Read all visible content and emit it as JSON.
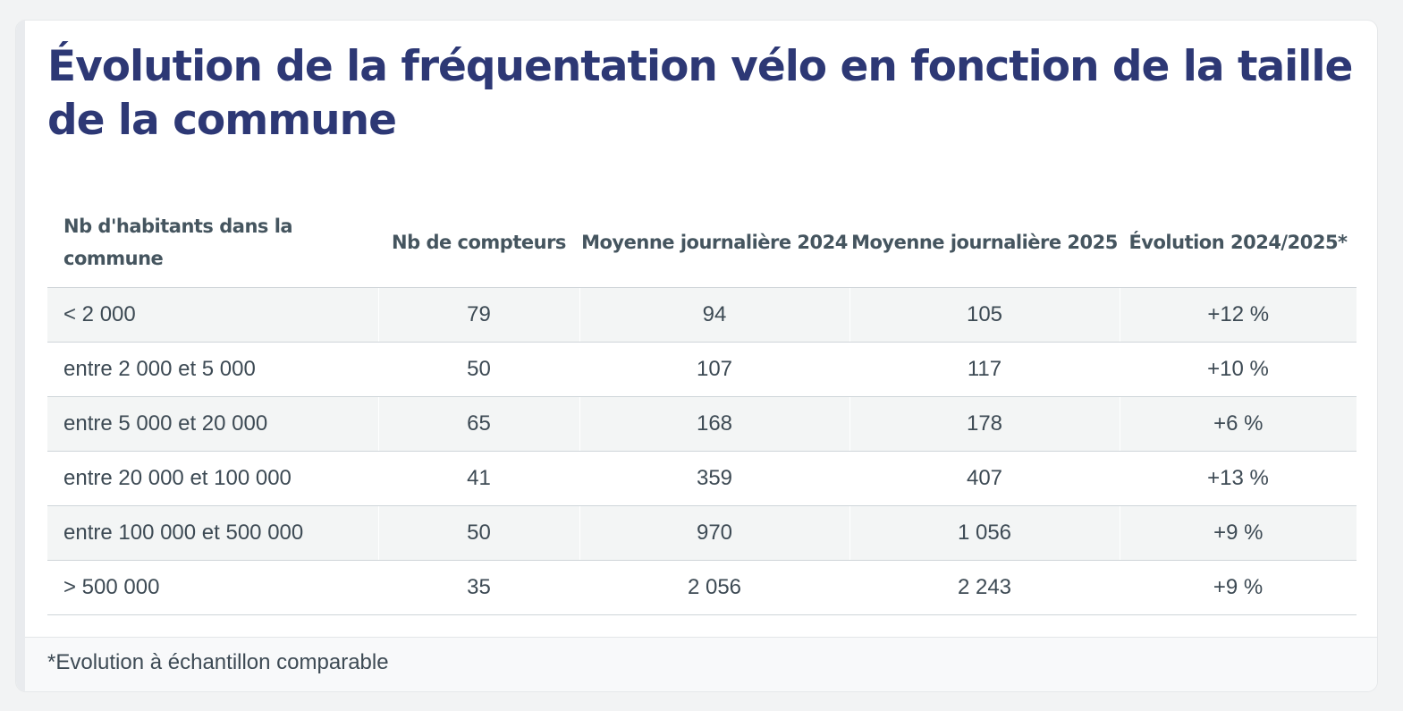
{
  "title": "Évolution de la fréquentation vélo en fonction de la taille de la commune",
  "table": {
    "headers": [
      "Nb d'habitants dans la commune",
      "Nb de compteurs",
      "Moyenne journalière 2024",
      "Moyenne journalière 2025",
      "Évolution 2024/2025*"
    ],
    "rows": [
      [
        "< 2 000",
        "79",
        "94",
        "105",
        "+12 %"
      ],
      [
        "entre 2 000 et 5 000",
        "50",
        "107",
        "117",
        "+10 %"
      ],
      [
        "entre 5 000 et 20 000",
        "65",
        "168",
        "178",
        "+6 %"
      ],
      [
        "entre 20 000 et 100 000",
        "41",
        "359",
        "407",
        "+13 %"
      ],
      [
        "entre 100 000 et 500 000",
        "50",
        "970",
        "1 056",
        "+9 %"
      ],
      [
        "> 500 000",
        "35",
        "2 056",
        "2 243",
        "+9 %"
      ]
    ]
  },
  "footnote": "*Evolution à échantillon comparable",
  "colors": {
    "title": "#2d3875",
    "text": "#3d4a54",
    "stripe": "#f3f5f5"
  }
}
